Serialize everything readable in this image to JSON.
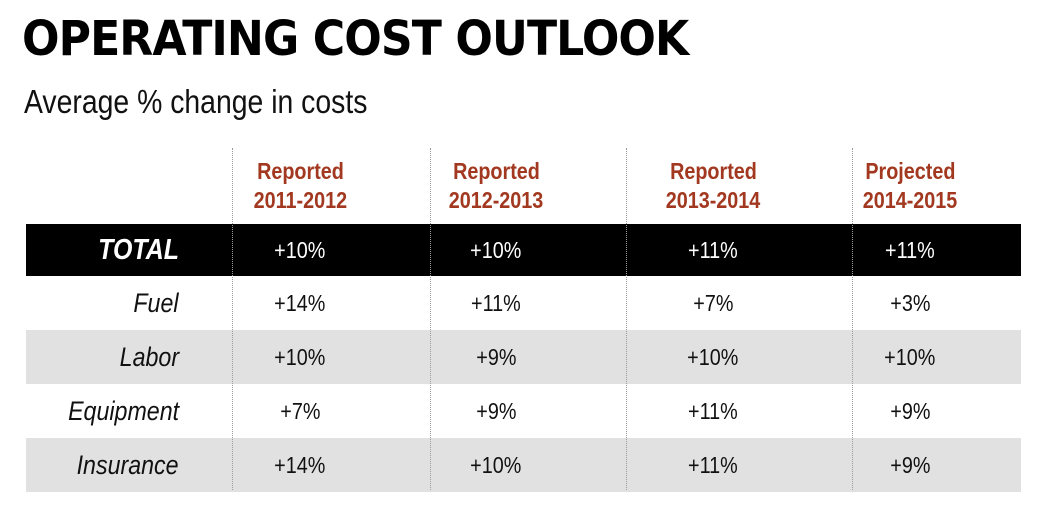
{
  "title": "OPERATING COST OUTLOOK",
  "subtitle": "Average % change in costs",
  "chart_data": {
    "type": "table",
    "columns": [
      {
        "line1": "Reported",
        "line2": "2011-2012"
      },
      {
        "line1": "Reported",
        "line2": "2012-2013"
      },
      {
        "line1": "Reported",
        "line2": "2013-2014"
      },
      {
        "line1": "Projected",
        "line2": "2014-2015"
      }
    ],
    "rows": [
      {
        "label": "TOTAL",
        "values": [
          "+10%",
          "+10%",
          "+11%",
          "+11%"
        ]
      },
      {
        "label": "Fuel",
        "values": [
          "+14%",
          "+11%",
          "+7%",
          "+3%"
        ]
      },
      {
        "label": "Labor",
        "values": [
          "+10%",
          "+9%",
          "+10%",
          "+10%"
        ]
      },
      {
        "label": "Equipment",
        "values": [
          "+7%",
          "+9%",
          "+11%",
          "+9%"
        ]
      },
      {
        "label": "Insurance",
        "values": [
          "+14%",
          "+10%",
          "+11%",
          "+9%"
        ]
      }
    ]
  },
  "colors": {
    "header_text": "#a2381f",
    "total_row_bg": "#000000",
    "shaded_row_bg": "#e1e1e1"
  }
}
